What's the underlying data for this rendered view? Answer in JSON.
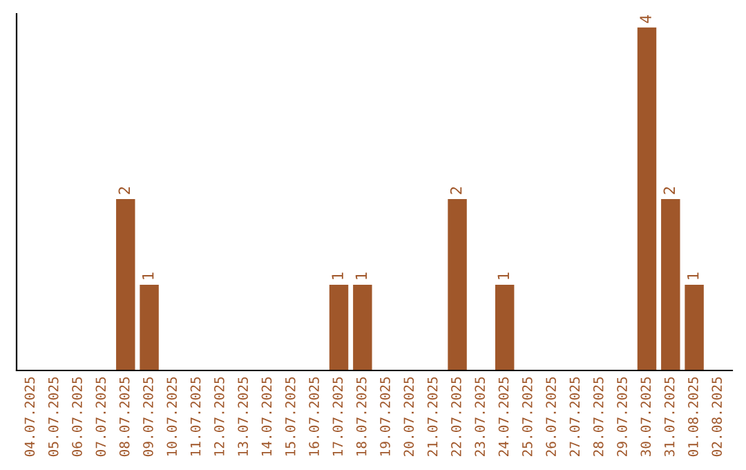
{
  "chart_data": {
    "type": "bar",
    "categories": [
      "04.07.2025",
      "05.07.2025",
      "06.07.2025",
      "07.07.2025",
      "08.07.2025",
      "09.07.2025",
      "10.07.2025",
      "11.07.2025",
      "12.07.2025",
      "13.07.2025",
      "14.07.2025",
      "15.07.2025",
      "16.07.2025",
      "17.07.2025",
      "18.07.2025",
      "19.07.2025",
      "20.07.2025",
      "21.07.2025",
      "22.07.2025",
      "23.07.2025",
      "24.07.2025",
      "25.07.2025",
      "26.07.2025",
      "27.07.2025",
      "28.07.2025",
      "29.07.2025",
      "30.07.2025",
      "31.07.2025",
      "01.08.2025",
      "02.08.2025"
    ],
    "values": [
      0,
      0,
      0,
      0,
      2,
      1,
      0,
      0,
      0,
      0,
      0,
      0,
      0,
      1,
      1,
      0,
      0,
      0,
      2,
      0,
      1,
      0,
      0,
      0,
      0,
      0,
      4,
      2,
      1,
      0
    ],
    "value_labels": [
      null,
      null,
      null,
      null,
      "2",
      "1",
      null,
      null,
      null,
      null,
      null,
      null,
      null,
      "1",
      "1",
      null,
      null,
      null,
      "2",
      null,
      "1",
      null,
      null,
      null,
      null,
      null,
      "4",
      "2",
      "1",
      null
    ],
    "color": "#a0572a",
    "grid": false,
    "legend": false
  }
}
